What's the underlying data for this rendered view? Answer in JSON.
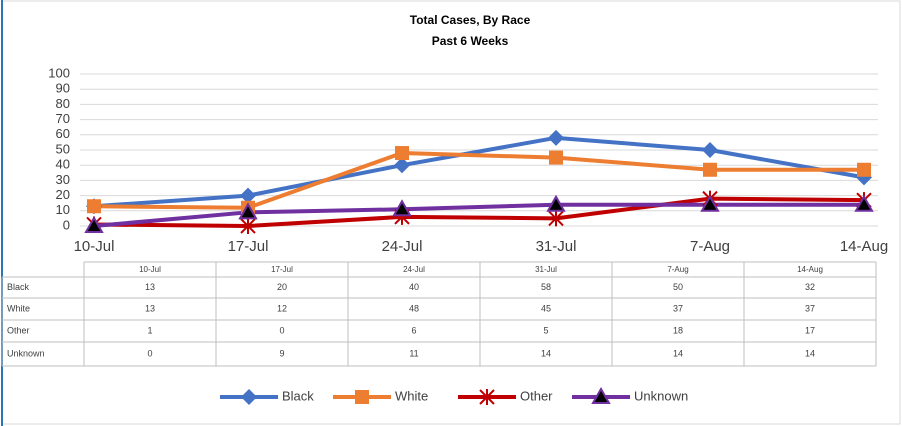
{
  "chart_data": {
    "type": "line",
    "title": "Total Cases, By Race",
    "subtitle": "Past 6 Weeks",
    "categories": [
      "10-Jul",
      "17-Jul",
      "24-Jul",
      "31-Jul",
      "7-Aug",
      "14-Aug"
    ],
    "series": [
      {
        "name": "Black",
        "color": "#4472c4",
        "marker": "diamond",
        "values": [
          13,
          20,
          40,
          58,
          50,
          32
        ]
      },
      {
        "name": "White",
        "color": "#ed7d31",
        "marker": "square",
        "values": [
          13,
          12,
          48,
          45,
          37,
          37
        ]
      },
      {
        "name": "Other",
        "color": "#c00000",
        "marker": "star",
        "values": [
          1,
          0,
          6,
          5,
          18,
          17
        ]
      },
      {
        "name": "Unknown",
        "color": "#7030a0",
        "marker": "triangle",
        "values": [
          0,
          9,
          11,
          14,
          14,
          14
        ]
      }
    ],
    "ylim": [
      0,
      100
    ],
    "yticks": [
      0,
      10,
      20,
      30,
      40,
      50,
      60,
      70,
      80,
      90,
      100
    ],
    "grid": true,
    "legend": "bottom",
    "data_table": true
  }
}
